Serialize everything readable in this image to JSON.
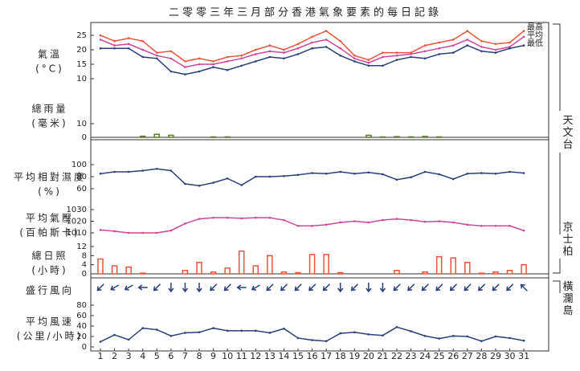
{
  "title": "二零零三年三月部分香港氣象要素的每日記錄",
  "stations": [
    "天文台",
    "京士柏",
    "橫瀾島"
  ],
  "chart_data": [
    {
      "type": "line",
      "ylabel": [
        "氣溫",
        "(°C)"
      ],
      "ylim": [
        10,
        27
      ],
      "yticks": [
        10,
        15,
        20,
        25
      ],
      "series": [
        {
          "name": "最高",
          "color": "#e8553a",
          "values": [
            25,
            23,
            24,
            23,
            19,
            19.5,
            16,
            17,
            16,
            17.5,
            18,
            20,
            21.5,
            20,
            22,
            24.5,
            26.5,
            23,
            18,
            16.5,
            19,
            19,
            19,
            21.5,
            22.5,
            23.5,
            26.5,
            23,
            22,
            22.5,
            26.5
          ]
        },
        {
          "name": "平均",
          "color": "#d0449b",
          "values": [
            23.5,
            21.5,
            22,
            20,
            18,
            17,
            14,
            15,
            15,
            16,
            17,
            18.5,
            19.5,
            19,
            20.5,
            22.5,
            23.5,
            20.5,
            17,
            15.5,
            17.5,
            18,
            18.5,
            19.5,
            20.5,
            21.5,
            23.5,
            21,
            20,
            21,
            24.5
          ]
        },
        {
          "name": "最低",
          "color": "#2a3f7a",
          "values": [
            20.5,
            20.5,
            20.5,
            17.5,
            17,
            12.5,
            11.5,
            12.5,
            14,
            13,
            14.5,
            16,
            17.5,
            17,
            18.5,
            20.5,
            21,
            18,
            16,
            14.5,
            14.5,
            16.5,
            17.5,
            17,
            18.5,
            19,
            21.5,
            19.5,
            19,
            20.5,
            21.5
          ]
        }
      ]
    },
    {
      "type": "bar",
      "ylabel": [
        "總雨量",
        "(毫米)"
      ],
      "ylim": [
        0,
        10
      ],
      "yticks": [
        0,
        10
      ],
      "color": "#5a7a2a",
      "values": [
        0,
        0,
        0,
        0.8,
        2.2,
        1.5,
        0,
        0,
        0.3,
        0.3,
        0,
        0,
        0,
        0,
        0,
        0,
        0,
        0,
        0,
        1.5,
        0.3,
        0.5,
        0.3,
        0.6,
        0.3,
        0,
        0,
        0,
        0,
        0,
        0
      ]
    },
    {
      "type": "line",
      "ylabel": [
        "平均相對濕度",
        "(%)"
      ],
      "ylim": [
        60,
        100
      ],
      "yticks": [
        60,
        80,
        100
      ],
      "series": [
        {
          "color": "#2a3f7a",
          "values": [
            85,
            88,
            88,
            90,
            93,
            90,
            68,
            65,
            70,
            77,
            66,
            80,
            80,
            81,
            83,
            86,
            85,
            88,
            85,
            87,
            84,
            75,
            79,
            88,
            84,
            76,
            85,
            86,
            85,
            88,
            86
          ]
        }
      ]
    },
    {
      "type": "line",
      "ylabel": [
        "平均氣壓",
        "(百帕斯卡)"
      ],
      "ylim": [
        1010,
        1030
      ],
      "yticks": [
        1010,
        1020,
        1030
      ],
      "series": [
        {
          "color": "#d0449b",
          "values": [
            1012.5,
            1011.5,
            1010,
            1010,
            1010,
            1012,
            1018,
            1022,
            1023,
            1023,
            1022.5,
            1023,
            1023,
            1021,
            1016,
            1016,
            1017,
            1019,
            1020,
            1019,
            1021,
            1022,
            1021,
            1019.5,
            1020,
            1019,
            1017,
            1016,
            1016,
            1016,
            1012
          ]
        }
      ]
    },
    {
      "type": "bar",
      "ylabel": [
        "總日照",
        "(小時)"
      ],
      "ylim": [
        0,
        12
      ],
      "yticks": [
        0,
        4,
        8,
        12
      ],
      "color": "#e8553a",
      "values": [
        6.5,
        3.5,
        3,
        0.3,
        0,
        0,
        1.5,
        5,
        0.8,
        2.5,
        10,
        3.5,
        8,
        0.8,
        0.5,
        8.5,
        8.5,
        0.5,
        0,
        0,
        0,
        1.5,
        0,
        0.8,
        7.5,
        7,
        5,
        0.3,
        0.8,
        1.5,
        4
      ]
    },
    {
      "type": "arrow",
      "ylabel": [
        "盛行風向"
      ],
      "color": "#2a3f7a",
      "values": [
        45,
        60,
        60,
        90,
        45,
        0,
        0,
        0,
        45,
        45,
        90,
        60,
        45,
        45,
        45,
        45,
        45,
        0,
        45,
        0,
        0,
        45,
        45,
        45,
        45,
        45,
        45,
        45,
        45,
        45,
        135
      ]
    },
    {
      "type": "line",
      "ylabel": [
        "平均風速",
        "(公里/小時)"
      ],
      "ylim": [
        0,
        80
      ],
      "yticks": [
        0,
        20,
        40,
        60,
        80
      ],
      "categories": [
        "1",
        "2",
        "3",
        "4",
        "5",
        "6",
        "7",
        "8",
        "9",
        "10",
        "11",
        "12",
        "13",
        "14",
        "15",
        "16",
        "17",
        "18",
        "19",
        "20",
        "21",
        "22",
        "23",
        "24",
        "25",
        "26",
        "27",
        "28",
        "29",
        "30",
        "31"
      ],
      "series": [
        {
          "color": "#2a3f7a",
          "values": [
            10,
            23,
            14,
            36,
            33,
            21,
            27,
            28,
            36,
            31,
            31,
            31,
            27,
            35,
            17,
            13,
            11,
            26,
            28,
            24,
            22,
            38,
            30,
            21,
            16,
            21,
            20,
            11,
            20,
            17,
            12
          ]
        }
      ]
    }
  ]
}
